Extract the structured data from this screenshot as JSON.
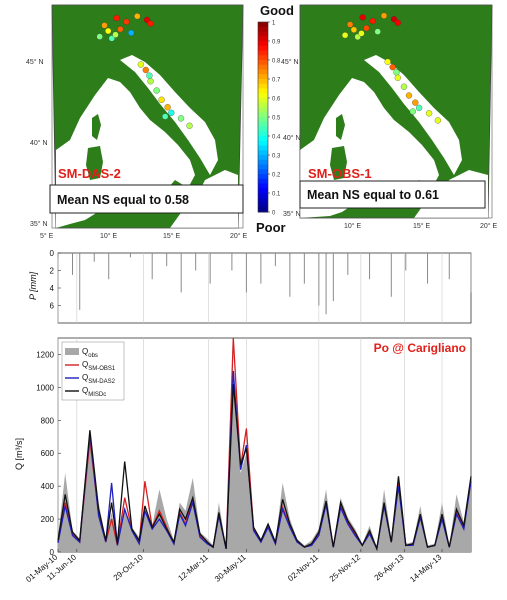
{
  "maps": [
    {
      "title": "SM-DAS-2",
      "stat": "Mean NS equal to 0.58",
      "lat_ticks": [
        "45° N",
        "40° N",
        "35° N"
      ],
      "lon_ticks": [
        "5° E",
        "10° E",
        "15° E",
        "20° E"
      ],
      "stations": [
        {
          "lon": 9.0,
          "lat": 45.9,
          "ns": 0.72
        },
        {
          "lon": 9.3,
          "lat": 45.6,
          "ns": 0.62
        },
        {
          "lon": 9.6,
          "lat": 45.2,
          "ns": 0.45
        },
        {
          "lon": 9.9,
          "lat": 45.4,
          "ns": 0.55
        },
        {
          "lon": 10.3,
          "lat": 45.7,
          "ns": 0.78
        },
        {
          "lon": 10.0,
          "lat": 46.3,
          "ns": 0.85
        },
        {
          "lon": 10.8,
          "lat": 46.1,
          "ns": 0.82
        },
        {
          "lon": 11.2,
          "lat": 45.5,
          "ns": 0.3
        },
        {
          "lon": 11.7,
          "lat": 46.4,
          "ns": 0.7
        },
        {
          "lon": 12.5,
          "lat": 46.2,
          "ns": 0.9
        },
        {
          "lon": 12.8,
          "lat": 46.0,
          "ns": 0.85
        },
        {
          "lon": 8.6,
          "lat": 45.3,
          "ns": 0.5
        },
        {
          "lon": 12.0,
          "lat": 43.8,
          "ns": 0.6
        },
        {
          "lon": 12.4,
          "lat": 43.5,
          "ns": 0.75
        },
        {
          "lon": 12.7,
          "lat": 43.2,
          "ns": 0.45
        },
        {
          "lon": 12.8,
          "lat": 42.9,
          "ns": 0.55
        },
        {
          "lon": 13.3,
          "lat": 42.4,
          "ns": 0.5
        },
        {
          "lon": 13.7,
          "lat": 41.9,
          "ns": 0.65
        },
        {
          "lon": 14.2,
          "lat": 41.5,
          "ns": 0.7
        },
        {
          "lon": 14.5,
          "lat": 41.2,
          "ns": 0.4
        },
        {
          "lon": 14.0,
          "lat": 41.0,
          "ns": 0.45
        },
        {
          "lon": 15.3,
          "lat": 40.9,
          "ns": 0.5
        },
        {
          "lon": 16.0,
          "lat": 40.5,
          "ns": 0.55
        }
      ]
    },
    {
      "title": "SM-OBS-1",
      "stat": "Mean NS equal to 0.61",
      "lat_ticks": [
        "45° N",
        "40° N",
        "35° N"
      ],
      "lon_ticks": [
        "10° E",
        "15° E",
        "20° E"
      ],
      "stations": [
        {
          "lon": 9.0,
          "lat": 45.9,
          "ns": 0.75
        },
        {
          "lon": 9.3,
          "lat": 45.6,
          "ns": 0.68
        },
        {
          "lon": 9.6,
          "lat": 45.2,
          "ns": 0.55
        },
        {
          "lon": 9.9,
          "lat": 45.4,
          "ns": 0.6
        },
        {
          "lon": 10.3,
          "lat": 45.7,
          "ns": 0.8
        },
        {
          "lon": 10.0,
          "lat": 46.3,
          "ns": 0.9
        },
        {
          "lon": 10.8,
          "lat": 46.1,
          "ns": 0.85
        },
        {
          "lon": 11.2,
          "lat": 45.5,
          "ns": 0.5
        },
        {
          "lon": 11.7,
          "lat": 46.4,
          "ns": 0.72
        },
        {
          "lon": 12.5,
          "lat": 46.2,
          "ns": 0.92
        },
        {
          "lon": 12.8,
          "lat": 46.0,
          "ns": 0.88
        },
        {
          "lon": 8.6,
          "lat": 45.3,
          "ns": 0.6
        },
        {
          "lon": 12.0,
          "lat": 43.8,
          "ns": 0.62
        },
        {
          "lon": 12.4,
          "lat": 43.5,
          "ns": 0.78
        },
        {
          "lon": 12.7,
          "lat": 43.2,
          "ns": 0.5
        },
        {
          "lon": 12.8,
          "lat": 42.9,
          "ns": 0.6
        },
        {
          "lon": 13.3,
          "lat": 42.4,
          "ns": 0.55
        },
        {
          "lon": 13.7,
          "lat": 41.9,
          "ns": 0.7
        },
        {
          "lon": 14.2,
          "lat": 41.5,
          "ns": 0.72
        },
        {
          "lon": 14.5,
          "lat": 41.2,
          "ns": 0.45
        },
        {
          "lon": 14.0,
          "lat": 41.0,
          "ns": 0.5
        },
        {
          "lon": 15.3,
          "lat": 40.9,
          "ns": 0.6
        },
        {
          "lon": 16.0,
          "lat": 40.5,
          "ns": 0.6
        }
      ]
    }
  ],
  "colorbar": {
    "top_label": "Good",
    "bottom_label": "Poor",
    "ticks": [
      "1",
      "0.9",
      "0.8",
      "0.7",
      "0.6",
      "0.5",
      "0.4",
      "0.3",
      "0.2",
      "0.1",
      "0"
    ],
    "range": [
      0,
      1
    ]
  },
  "colors": {
    "land": "#2d7d1a",
    "sea": "#ffffff",
    "annotation_red": "#e0201a",
    "rain": "#9a9a9a"
  },
  "chart_data": [
    {
      "type": "area",
      "ylabel": "P [mm]",
      "ylim": [
        8,
        0
      ],
      "yticks": [
        0,
        2,
        4,
        6
      ],
      "x_months": [
        0,
        28.5
      ],
      "x": [
        0,
        1.0,
        1.5,
        2.5,
        3.5,
        5.0,
        6.5,
        7.5,
        8.5,
        9.5,
        10.5,
        12.0,
        13.0,
        14.0,
        15.0,
        16.0,
        17.0,
        18.0,
        18.5,
        19.0,
        20.0,
        21.5,
        23.0,
        24.0,
        25.5,
        27.0,
        28.5
      ],
      "values": [
        0.5,
        2.5,
        6.5,
        1.0,
        3.0,
        0.5,
        3.0,
        1.5,
        4.5,
        2.0,
        3.5,
        2.0,
        4.5,
        3.5,
        1.5,
        5.0,
        3.5,
        6.0,
        7.0,
        5.5,
        2.5,
        3.0,
        5.0,
        2.0,
        3.5,
        3.0,
        4.5
      ]
    },
    {
      "type": "line",
      "title": "Po @ Carigliano",
      "ylabel": "Q [m³/s]",
      "ylim": [
        0,
        1300
      ],
      "yticks": [
        0,
        200,
        400,
        600,
        800,
        1000,
        1200
      ],
      "x_tick_labels": [
        "01-May-10",
        "11-Jun-10",
        "29-Oct-10",
        "12-Mar-11",
        "30-May-11",
        "02-Nov-11",
        "25-Nov-12",
        "26-Apr-13",
        "14-May-13"
      ],
      "x_tick_months": [
        0,
        1.3,
        5.9,
        10.4,
        13.0,
        18.0,
        20.9,
        23.9,
        26.5
      ],
      "series": [
        {
          "name": "Q obs",
          "legend_main": "Q",
          "legend_sub": "obs",
          "color": "#a8a8a8",
          "x": [
            0,
            0.5,
            1.0,
            1.5,
            2.2,
            2.8,
            3.3,
            3.7,
            4.1,
            4.6,
            5.1,
            5.6,
            6.0,
            6.5,
            7.0,
            7.5,
            8.0,
            8.4,
            8.8,
            9.3,
            9.8,
            10.3,
            10.7,
            11.1,
            11.6,
            12.1,
            12.6,
            13.0,
            13.5,
            14.0,
            14.5,
            15.0,
            15.5,
            16.0,
            16.5,
            17.0,
            17.5,
            18.0,
            18.5,
            19.0,
            19.5,
            20.0,
            20.5,
            21.0,
            21.5,
            22.0,
            22.5,
            23.0,
            23.5,
            24.0,
            24.5,
            25.0,
            25.5,
            26.0,
            26.5,
            27.0,
            27.5,
            28.0,
            28.5
          ],
          "values": [
            90,
            480,
            130,
            80,
            700,
            300,
            80,
            240,
            60,
            250,
            150,
            90,
            250,
            160,
            380,
            200,
            70,
            300,
            250,
            450,
            120,
            80,
            40,
            300,
            30,
            1000,
            480,
            600,
            150,
            80,
            180,
            60,
            420,
            200,
            80,
            40,
            70,
            140,
            380,
            40,
            330,
            210,
            140,
            50,
            160,
            30,
            380,
            80,
            430,
            50,
            60,
            280,
            40,
            50,
            300,
            40,
            350,
            180,
            460
          ]
        },
        {
          "name": "Q SM-OBS1",
          "legend_main": "Q",
          "legend_sub": "SM-OBS1",
          "color": "#d42020",
          "x": [
            0,
            0.5,
            1.0,
            1.5,
            2.2,
            2.8,
            3.3,
            3.7,
            4.1,
            4.6,
            5.1,
            5.6,
            6.0,
            6.5,
            7.0,
            7.5,
            8.0,
            8.4,
            8.8,
            9.3,
            9.8,
            10.3,
            10.7,
            11.1,
            11.6,
            12.1,
            12.6,
            13.0,
            13.5,
            14.0,
            14.5,
            15.0,
            15.5,
            16.0,
            16.5,
            17.0,
            17.5,
            18.0,
            18.5,
            19.0,
            19.5,
            20.0,
            20.5,
            21.0,
            21.5,
            22.0,
            22.5,
            23.0,
            23.5,
            24.0,
            24.5,
            25.0,
            25.5,
            26.0,
            26.5,
            27.0,
            27.5,
            28.0,
            28.5
          ],
          "values": [
            60,
            300,
            110,
            60,
            680,
            230,
            60,
            200,
            40,
            330,
            140,
            60,
            430,
            150,
            250,
            150,
            50,
            240,
            170,
            320,
            100,
            60,
            30,
            230,
            20,
            1300,
            520,
            750,
            140,
            60,
            160,
            50,
            270,
            160,
            60,
            30,
            50,
            110,
            300,
            30,
            280,
            180,
            110,
            40,
            120,
            20,
            290,
            60,
            420,
            40,
            40,
            220,
            30,
            40,
            210,
            30,
            240,
            150,
            440
          ]
        },
        {
          "name": "Q SM-DAS2",
          "legend_main": "Q",
          "legend_sub": "SM-DAS2",
          "color": "#2020c0",
          "x": [
            0,
            0.5,
            1.0,
            1.5,
            2.2,
            2.8,
            3.3,
            3.7,
            4.1,
            4.6,
            5.1,
            5.6,
            6.0,
            6.5,
            7.0,
            7.5,
            8.0,
            8.4,
            8.8,
            9.3,
            9.8,
            10.3,
            10.7,
            11.1,
            11.6,
            12.1,
            12.6,
            13.0,
            13.5,
            14.0,
            14.5,
            15.0,
            15.5,
            16.0,
            16.5,
            17.0,
            17.5,
            18.0,
            18.5,
            19.0,
            19.5,
            20.0,
            20.5,
            21.0,
            21.5,
            22.0,
            22.5,
            23.0,
            23.5,
            24.0,
            24.5,
            25.0,
            25.5,
            26.0,
            26.5,
            27.0,
            27.5,
            28.0,
            28.5
          ],
          "values": [
            55,
            280,
            100,
            60,
            720,
            220,
            60,
            420,
            40,
            260,
            130,
            50,
            250,
            140,
            200,
            130,
            50,
            230,
            160,
            300,
            90,
            50,
            30,
            220,
            20,
            1100,
            500,
            650,
            130,
            60,
            150,
            50,
            260,
            150,
            60,
            30,
            40,
            100,
            290,
            30,
            270,
            170,
            100,
            40,
            110,
            20,
            280,
            60,
            400,
            40,
            40,
            210,
            30,
            40,
            200,
            30,
            230,
            140,
            430
          ]
        },
        {
          "name": "Q MISDc",
          "legend_main": "Q",
          "legend_sub": "MISDc",
          "color": "#111111",
          "x": [
            0,
            0.5,
            1.0,
            1.5,
            2.2,
            2.8,
            3.3,
            3.7,
            4.1,
            4.6,
            5.1,
            5.6,
            6.0,
            6.5,
            7.0,
            7.5,
            8.0,
            8.4,
            8.8,
            9.3,
            9.8,
            10.3,
            10.7,
            11.1,
            11.6,
            12.1,
            12.6,
            13.0,
            13.5,
            14.0,
            14.5,
            15.0,
            15.5,
            16.0,
            16.5,
            17.0,
            17.5,
            18.0,
            18.5,
            19.0,
            19.5,
            20.0,
            20.5,
            21.0,
            21.5,
            22.0,
            22.5,
            23.0,
            23.5,
            24.0,
            24.5,
            25.0,
            25.5,
            26.0,
            26.5,
            27.0,
            27.5,
            28.0,
            28.5
          ],
          "values": [
            70,
            350,
            120,
            70,
            740,
            260,
            70,
            300,
            50,
            550,
            140,
            70,
            280,
            150,
            230,
            140,
            60,
            260,
            200,
            330,
            110,
            60,
            30,
            240,
            20,
            1020,
            530,
            630,
            150,
            70,
            170,
            60,
            320,
            170,
            70,
            30,
            50,
            120,
            310,
            30,
            300,
            190,
            120,
            40,
            130,
            20,
            300,
            60,
            460,
            40,
            50,
            230,
            30,
            40,
            230,
            30,
            260,
            160,
            460
          ]
        }
      ]
    }
  ]
}
